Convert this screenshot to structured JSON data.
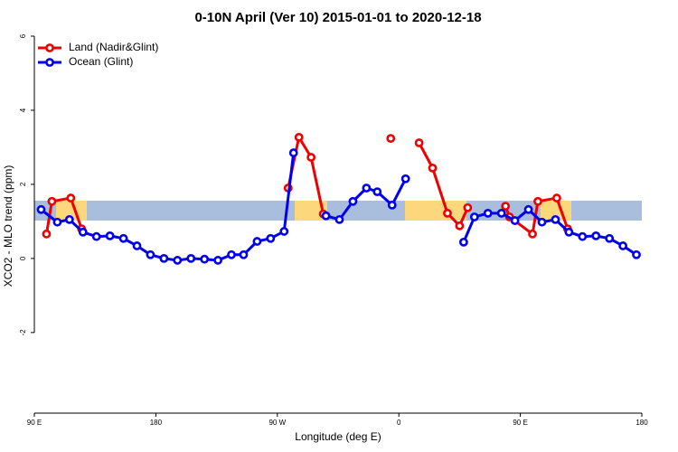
{
  "chart_data": {
    "type": "line",
    "title": "0-10N April (Ver 10)   2015-01-01 to 2020-12-18",
    "xlabel": "Longitude (deg E)",
    "ylabel": "XCO2 - MLO trend (ppm)",
    "xlim": [
      90,
      540
    ],
    "ylim": [
      -4.2,
      6.2
    ],
    "xticks": [
      {
        "value": 90,
        "label": "90 E"
      },
      {
        "value": 180,
        "label": "180"
      },
      {
        "value": 270,
        "label": "90 W"
      },
      {
        "value": 360,
        "label": "0"
      },
      {
        "value": 450,
        "label": "90 E"
      },
      {
        "value": 540,
        "label": "180"
      }
    ],
    "yticks": [
      -2,
      0,
      2,
      4,
      6
    ],
    "legend": "top-left",
    "series": [
      {
        "name": "Land (Nadir&Glint)",
        "color": "#ee0000",
        "x": [
          99,
          103,
          117,
          125,
          200,
          278,
          286,
          295,
          304,
          330,
          354,
          365,
          375,
          385,
          396,
          405,
          411,
          425,
          439,
          442,
          459,
          463,
          477,
          485
        ],
        "values": [
          0.66,
          1.54,
          1.63,
          0.8,
          null,
          1.9,
          3.27,
          2.73,
          1.2,
          null,
          3.24,
          null,
          3.12,
          2.44,
          1.22,
          0.88,
          1.37,
          null,
          1.41,
          1.12,
          0.66,
          1.54,
          1.63,
          0.8
        ]
      },
      {
        "name": "Ocean (Glint)",
        "color": "#0000ee",
        "x": [
          95,
          107,
          116,
          126,
          136,
          146,
          156,
          166,
          176,
          186,
          196,
          206,
          216,
          226,
          236,
          245,
          255,
          265,
          275,
          282,
          294,
          306,
          316,
          326,
          336,
          344,
          355,
          365,
          386,
          408,
          416,
          426,
          436,
          446,
          456,
          466,
          476,
          486,
          496,
          506,
          516,
          526,
          536
        ],
        "values": [
          1.32,
          0.98,
          1.05,
          0.71,
          0.59,
          0.61,
          0.54,
          0.34,
          0.1,
          0.0,
          -0.05,
          0.0,
          -0.02,
          -0.05,
          0.1,
          0.1,
          0.46,
          0.54,
          0.73,
          2.85,
          null,
          1.15,
          1.05,
          1.54,
          1.9,
          1.8,
          1.44,
          2.15,
          null,
          0.44,
          1.12,
          1.22,
          1.22,
          1.02,
          1.32,
          0.98,
          1.05,
          0.71,
          0.59,
          0.61,
          0.54,
          0.34,
          0.1
        ]
      }
    ]
  }
}
